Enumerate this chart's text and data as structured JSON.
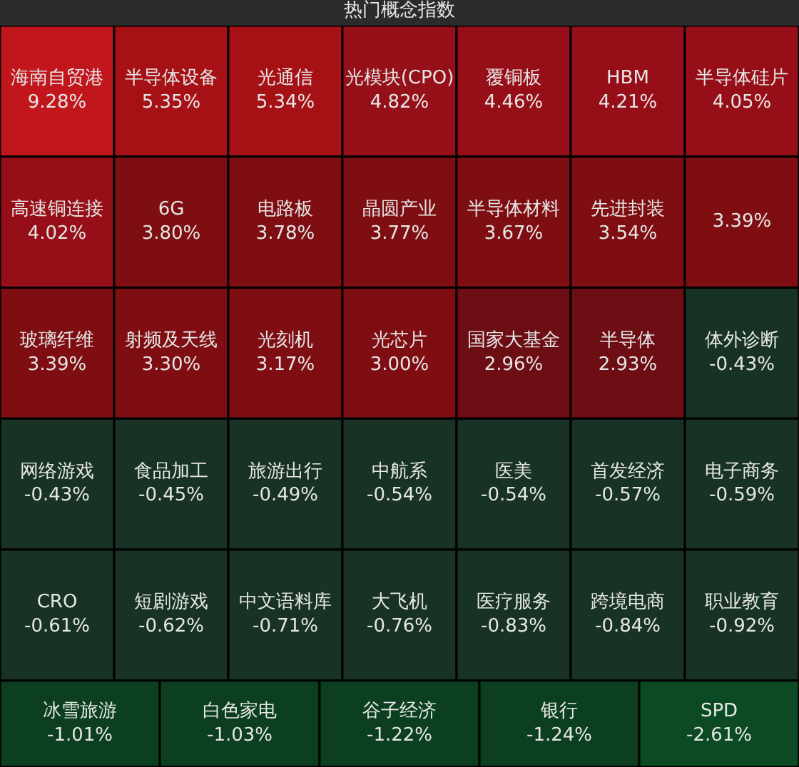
{
  "chart_data": {
    "type": "other",
    "title": "热门概念指数",
    "categories": [
      "海南自贸港",
      "半导体设备",
      "光通信",
      "光模块(CPO)",
      "覆铜板",
      "HBM",
      "半导体硅片",
      "高速铜连接",
      "6G",
      "电路板",
      "晶圆产业",
      "半导体材料",
      "先进封装",
      null,
      "玻璃纤维",
      "射频及天线",
      "光刻机",
      "光芯片",
      "国家大基金",
      "半导体",
      "体外诊断",
      "网络游戏",
      "食品加工",
      "旅游出行",
      "中航系",
      "医美",
      "首发经济",
      "电子商务",
      "CRO",
      "短剧游戏",
      "中文语料库",
      "大飞机",
      "医疗服务",
      "跨境电商",
      "职业教育",
      "冰雪旅游",
      "白色家电",
      "谷子经济",
      "银行",
      "SPD"
    ],
    "values": [
      9.28,
      5.35,
      5.34,
      4.82,
      4.46,
      4.21,
      4.05,
      4.02,
      3.8,
      3.78,
      3.77,
      3.67,
      3.54,
      3.39,
      3.39,
      3.3,
      3.17,
      3.0,
      2.96,
      2.93,
      -0.43,
      -0.43,
      -0.45,
      -0.49,
      -0.54,
      -0.54,
      -0.57,
      -0.59,
      -0.61,
      -0.62,
      -0.71,
      -0.76,
      -0.83,
      -0.84,
      -0.92,
      -1.01,
      -1.03,
      -1.22,
      -1.24,
      -2.61
    ],
    "value_labels": [
      "9.28%",
      "5.35%",
      "5.34%",
      "4.82%",
      "4.46%",
      "4.21%",
      "4.05%",
      "4.02%",
      "3.80%",
      "3.78%",
      "3.77%",
      "3.67%",
      "3.54%",
      "3.39%",
      "3.39%",
      "3.30%",
      "3.17%",
      "3.00%",
      "2.96%",
      "2.93%",
      "-0.43%",
      "-0.43%",
      "-0.45%",
      "-0.49%",
      "-0.54%",
      "-0.54%",
      "-0.57%",
      "-0.59%",
      "-0.61%",
      "-0.62%",
      "-0.71%",
      "-0.76%",
      "-0.83%",
      "-0.84%",
      "-0.92%",
      "-1.01%",
      "-1.03%",
      "-1.22%",
      "-1.24%",
      "-2.61%"
    ],
    "colors": [
      "#c2161d",
      "#a61116",
      "#a61116",
      "#96101a",
      "#960f18",
      "#960f18",
      "#960f18",
      "#960f18",
      "#7f0e13",
      "#7f0e13",
      "#7f0e13",
      "#7f0e13",
      "#7f0e13",
      "#7f0e13",
      "#7f0e13",
      "#7f0e13",
      "#7f0e13",
      "#7f0e13",
      "#6c0e14",
      "#6c0e14",
      "#183325",
      "#183325",
      "#183325",
      "#183325",
      "#183325",
      "#183325",
      "#183325",
      "#183325",
      "#183325",
      "#183325",
      "#183325",
      "#183325",
      "#183325",
      "#183325",
      "#183325",
      "#0b3f20",
      "#0b3f20",
      "#0b3f20",
      "#0b3f20",
      "#0b4a22"
    ]
  }
}
